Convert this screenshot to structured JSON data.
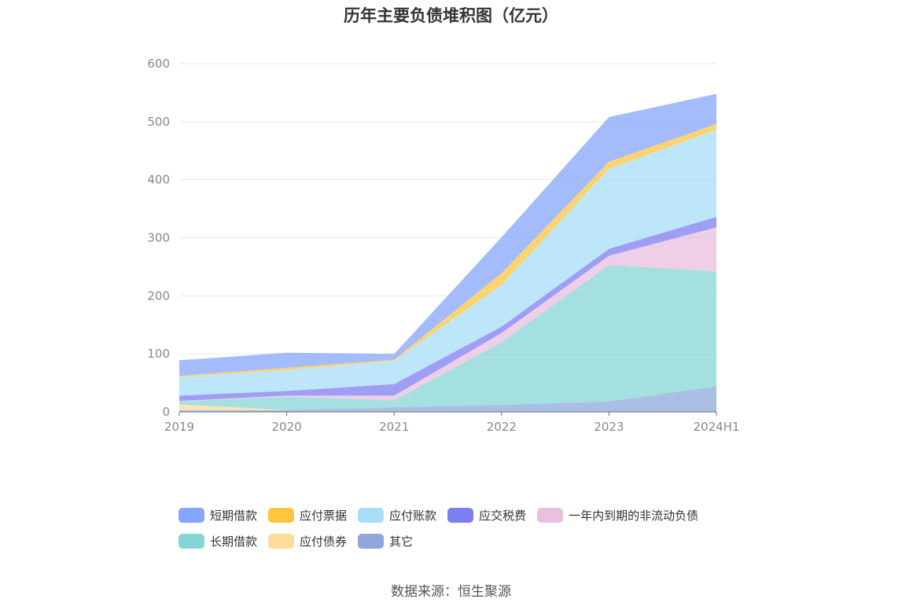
{
  "title": "历年主要负债堆积图（亿元）",
  "source": "数据来源：恒生聚源",
  "chart_data": {
    "type": "area",
    "stacked": true,
    "title": "历年主要负债堆积图（亿元）",
    "xlabel": "",
    "ylabel": "",
    "categories": [
      "2019",
      "2020",
      "2021",
      "2022",
      "2023",
      "2024H1"
    ],
    "ylim": [
      0,
      600
    ],
    "yticks": [
      0,
      100,
      200,
      300,
      400,
      500,
      600
    ],
    "grid": true,
    "legend_position": "bottom",
    "series": [
      {
        "name": "其它",
        "color": "#8fa8d9",
        "values": [
          3,
          3,
          8,
          12,
          18,
          44
        ]
      },
      {
        "name": "应付债券",
        "color": "#fddb9a",
        "values": [
          10,
          0,
          0,
          0,
          0,
          0
        ]
      },
      {
        "name": "长期借款",
        "color": "#85d5d4",
        "values": [
          5,
          23,
          12,
          108,
          235,
          198
        ]
      },
      {
        "name": "一年内到期的非流动负债",
        "color": "#eabfdf",
        "values": [
          1,
          2,
          8,
          16,
          16,
          76
        ]
      },
      {
        "name": "应交税费",
        "color": "#7d7ef0",
        "values": [
          9,
          8,
          20,
          11,
          12,
          18
        ]
      },
      {
        "name": "应付账款",
        "color": "#a8ddf8",
        "values": [
          32,
          36,
          40,
          72,
          138,
          150
        ]
      },
      {
        "name": "应付票据",
        "color": "#ffc53d",
        "values": [
          2,
          4,
          2,
          20,
          12,
          10
        ]
      },
      {
        "name": "短期借款",
        "color": "#85a6fa",
        "values": [
          27,
          26,
          10,
          62,
          77,
          52
        ]
      }
    ]
  },
  "legend": [
    {
      "name": "短期借款",
      "color": "#85a6fa"
    },
    {
      "name": "应付票据",
      "color": "#ffc53d"
    },
    {
      "name": "应付账款",
      "color": "#a8ddf8"
    },
    {
      "name": "应交税费",
      "color": "#7d7ef0"
    },
    {
      "name": "一年内到期的非流动负债",
      "color": "#eabfdf"
    },
    {
      "name": "长期借款",
      "color": "#85d5d4"
    },
    {
      "name": "应付债券",
      "color": "#fddb9a"
    },
    {
      "name": "其它",
      "color": "#8fa8d9"
    }
  ]
}
